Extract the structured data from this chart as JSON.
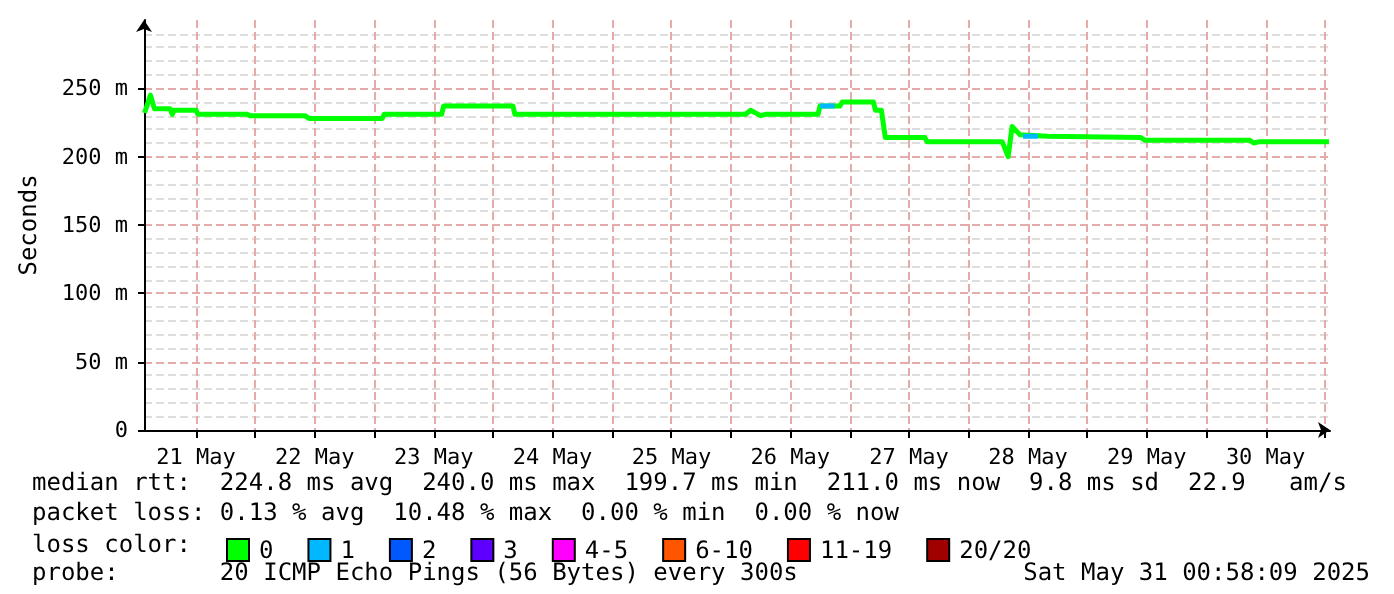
{
  "chart_data": {
    "type": "line",
    "ylabel": "Seconds",
    "legend_title": "loss color:",
    "xlim": [
      "2025-05-21T01:30",
      "2025-05-31T01:00"
    ],
    "xticks": [
      {
        "value": "2025-05-21T12:00",
        "label": "21 May"
      },
      {
        "value": "2025-05-22T00:00",
        "label": null
      },
      {
        "value": "2025-05-22T12:00",
        "label": "22 May"
      },
      {
        "value": "2025-05-23T00:00",
        "label": null
      },
      {
        "value": "2025-05-23T12:00",
        "label": "23 May"
      },
      {
        "value": "2025-05-24T00:00",
        "label": null
      },
      {
        "value": "2025-05-24T12:00",
        "label": "24 May"
      },
      {
        "value": "2025-05-25T00:00",
        "label": null
      },
      {
        "value": "2025-05-25T12:00",
        "label": "25 May"
      },
      {
        "value": "2025-05-26T00:00",
        "label": null
      },
      {
        "value": "2025-05-26T12:00",
        "label": "26 May"
      },
      {
        "value": "2025-05-27T00:00",
        "label": null
      },
      {
        "value": "2025-05-27T12:00",
        "label": "27 May"
      },
      {
        "value": "2025-05-28T00:00",
        "label": null
      },
      {
        "value": "2025-05-28T12:00",
        "label": "28 May"
      },
      {
        "value": "2025-05-29T00:00",
        "label": null
      },
      {
        "value": "2025-05-29T12:00",
        "label": "29 May"
      },
      {
        "value": "2025-05-30T00:00",
        "label": null
      },
      {
        "value": "2025-05-30T12:00",
        "label": "30 May"
      },
      {
        "value": "2025-05-31T00:00",
        "label": null
      }
    ],
    "ylim": [
      0,
      300
    ],
    "yticks": [
      0,
      {
        "value": 50,
        "label": "50 m"
      },
      {
        "value": 100,
        "label": "100 m"
      },
      {
        "value": 150,
        "label": "150 m"
      },
      {
        "value": 200,
        "label": "200 m"
      },
      {
        "value": 250,
        "label": "250 m"
      }
    ],
    "grid": true,
    "legend": "bottom",
    "marker": "none",
    "line_style": "solid",
    "series": [
      {
        "name": "0",
        "color": "#00ff00",
        "x": [
          "2025-05-21T01:36",
          "2025-05-21T02:48",
          "2025-05-21T03:36",
          "2025-05-21T06:48",
          "2025-05-21T07:12",
          "2025-05-21T07:36",
          "2025-05-21T12:00",
          "2025-05-21T12:24",
          "2025-05-21T22:24",
          "2025-05-21T22:48",
          "2025-05-22T10:00",
          "2025-05-22T10:48",
          "2025-05-23T01:36",
          "2025-05-23T02:00",
          "2025-05-23T13:36",
          "2025-05-23T14:00",
          "2025-05-24T04:00",
          "2025-05-24T04:24",
          "2025-05-26T03:00",
          "2025-05-26T04:00",
          "2025-05-26T06:00",
          "2025-05-26T07:00",
          "2025-05-26T17:36",
          "2025-05-26T18:00",
          "2025-05-26T22:00",
          "2025-05-26T22:30",
          "2025-05-27T04:48",
          "2025-05-27T05:12",
          "2025-05-27T06:24",
          "2025-05-27T07:12",
          "2025-05-27T15:12",
          "2025-05-27T15:36",
          "2025-05-28T06:48",
          "2025-05-28T08:00",
          "2025-05-28T08:48",
          "2025-05-28T10:24",
          "2025-05-28T16:00",
          "2025-05-29T10:48",
          "2025-05-29T11:36",
          "2025-05-30T08:48",
          "2025-05-30T09:36",
          "2025-05-30T10:48",
          "2025-05-31T00:48"
        ],
        "values": [
          232,
          245,
          235,
          235,
          231,
          234,
          234,
          231,
          231,
          230,
          230,
          228,
          228,
          231,
          231,
          237,
          237,
          231,
          231,
          234,
          230,
          231,
          231,
          237,
          237,
          240,
          240,
          234,
          234,
          214,
          214,
          211,
          211,
          200,
          222,
          216,
          215,
          214,
          212,
          212,
          210,
          211,
          211
        ]
      },
      {
        "name": "1",
        "color": "#00b8ff",
        "x": [
          "2025-05-26T18:00",
          "2025-05-26T21:00",
          null,
          "2025-05-28T11:00",
          "2025-05-28T14:00"
        ],
        "values": [
          237,
          237,
          null,
          215,
          215
        ]
      },
      {
        "name": "2",
        "color": "#0059ff"
      },
      {
        "name": "3",
        "color": "#5e00ff"
      },
      {
        "name": "4-5",
        "color": "#ff00ff"
      },
      {
        "name": "6-10",
        "color": "#ff5500"
      },
      {
        "name": "11-19",
        "color": "#ff0000"
      },
      {
        "name": "20/20",
        "color": "#a10000"
      }
    ],
    "annotations": [
      "median rtt:  224.8 ms avg  240.0 ms max  199.7 ms min  211.0 ms now  9.8 ms sd  22.9   am/s",
      "packet loss: 0.13 % avg  10.48 % max  0.00 % min  0.00 % now",
      "probe:       20 ICMP Echo Pings (56 Bytes) every 300s",
      "Sat May 31 00:58:09 2025"
    ]
  }
}
